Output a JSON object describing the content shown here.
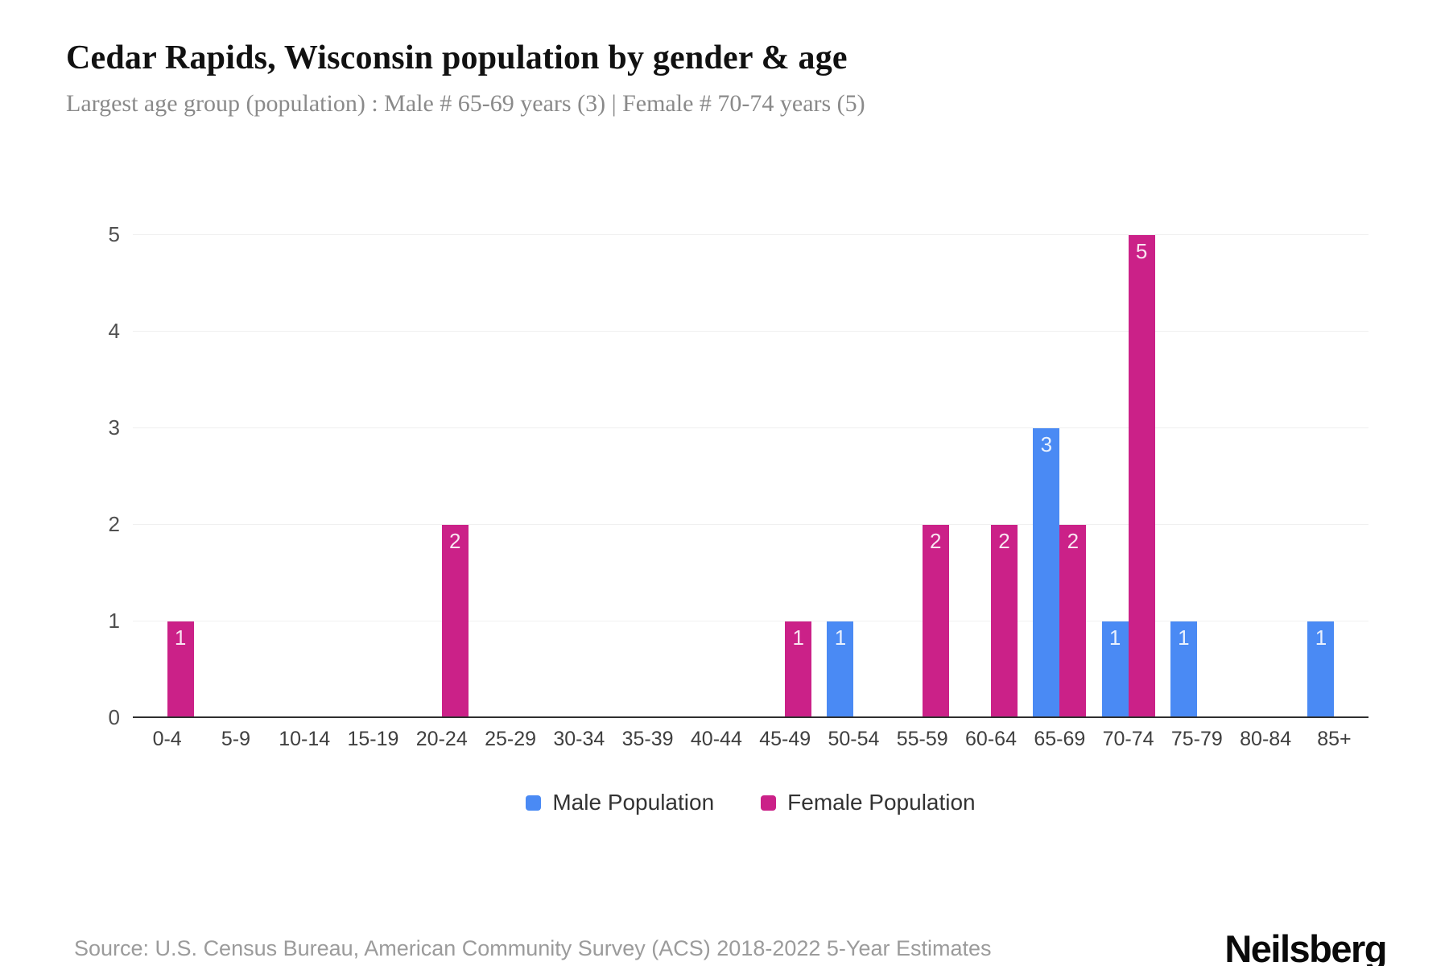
{
  "page": {
    "title": "Cedar Rapids, Wisconsin population by gender & age",
    "subtitle": "Largest age group (population) : Male # 65-69 years (3) | Female # 70-74 years (5)",
    "source": "Source: U.S. Census Bureau, American Community Survey (ACS) 2018-2022 5-Year Estimates",
    "brand": "Neilsberg"
  },
  "chart_data": {
    "type": "bar",
    "title": "Cedar Rapids, Wisconsin population by gender & age",
    "subtitle": "Largest age group (population) : Male # 65-69 years (3) | Female # 70-74 years (5)",
    "categories": [
      "0-4",
      "5-9",
      "10-14",
      "15-19",
      "20-24",
      "25-29",
      "30-34",
      "35-39",
      "40-44",
      "45-49",
      "50-54",
      "55-59",
      "60-64",
      "65-69",
      "70-74",
      "75-79",
      "80-84",
      "85+"
    ],
    "series": [
      {
        "name": "Male Population",
        "color": "#4a8af4",
        "values": [
          0,
          0,
          0,
          0,
          0,
          0,
          0,
          0,
          0,
          0,
          1,
          0,
          0,
          3,
          1,
          1,
          0,
          1
        ]
      },
      {
        "name": "Female Population",
        "color": "#cb2188",
        "values": [
          1,
          0,
          0,
          0,
          2,
          0,
          0,
          0,
          0,
          1,
          0,
          2,
          2,
          2,
          5,
          0,
          0,
          0
        ]
      }
    ],
    "xlabel": "",
    "ylabel": "",
    "ylim": [
      0,
      5
    ],
    "yticks": [
      0,
      1,
      2,
      3,
      4,
      5
    ],
    "grid": "horizontal",
    "legend_position": "bottom",
    "value_labels": "inside-top",
    "colors": {
      "male": "#4a8af4",
      "female": "#cb2188",
      "gridline": "#f0f0f0",
      "axis_line": "#2f2f2f"
    }
  }
}
